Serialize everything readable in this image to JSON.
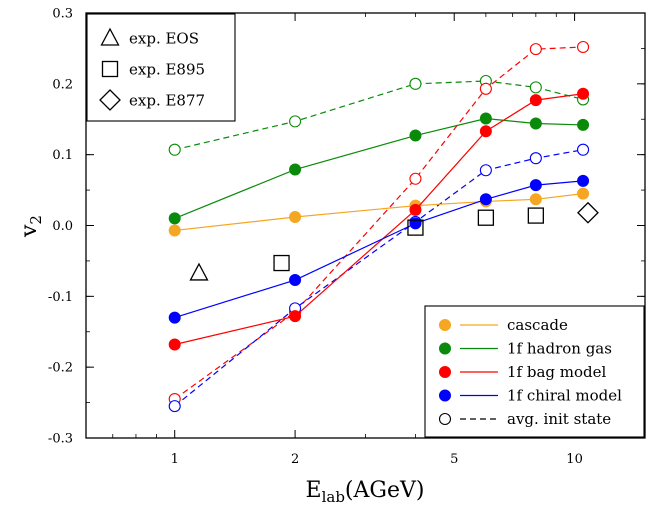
{
  "chart_data": {
    "type": "line",
    "title": "",
    "xlabel": "E",
    "xlabel_subscript": "lab",
    "xlabel_suffix": "(AGeV)",
    "ylabel": "v",
    "ylabel_subscript": "2",
    "xscale": "log",
    "xlim": [
      0.6,
      15
    ],
    "ylim": [
      -0.3,
      0.3
    ],
    "x_ticks": [
      {
        "value": 1,
        "label": "1"
      },
      {
        "value": 2,
        "label": "2"
      },
      {
        "value": 5,
        "label": "5"
      },
      {
        "value": 10,
        "label": "10"
      }
    ],
    "y_ticks": [
      {
        "value": 0.3,
        "label": "0.3"
      },
      {
        "value": 0.2,
        "label": "0.2"
      },
      {
        "value": 0.1,
        "label": "0.1"
      },
      {
        "value": 0.0,
        "label": "0.0"
      },
      {
        "value": -0.1,
        "label": "-0.1"
      },
      {
        "value": -0.2,
        "label": "-0.2"
      },
      {
        "value": -0.3,
        "label": "-0.3"
      }
    ],
    "grid": false,
    "series": [
      {
        "id": "cascade",
        "name": "cascade",
        "color": "#f5a623",
        "marker": "filled-circle",
        "line": "solid",
        "x": [
          1,
          2,
          4,
          6,
          8,
          10.5
        ],
        "y": [
          -0.007,
          0.012,
          0.028,
          0.034,
          0.037,
          0.045
        ]
      },
      {
        "id": "hadron",
        "name": "1f hadron gas",
        "color": "#0a8a0a",
        "marker": "filled-circle",
        "line": "solid",
        "x": [
          1,
          2,
          4,
          6,
          8,
          10.5
        ],
        "y": [
          0.01,
          0.079,
          0.127,
          0.151,
          0.144,
          0.142
        ]
      },
      {
        "id": "bag",
        "name": "1f bag model",
        "color": "#ff0000",
        "marker": "filled-circle",
        "line": "solid",
        "x": [
          1,
          2,
          4,
          6,
          8,
          10.5
        ],
        "y": [
          -0.168,
          -0.128,
          0.022,
          0.133,
          0.177,
          0.186
        ]
      },
      {
        "id": "chiral",
        "name": "1f chiral model",
        "color": "#0000ff",
        "marker": "filled-circle",
        "line": "solid",
        "x": [
          1,
          2,
          4,
          6,
          8,
          10.5
        ],
        "y": [
          -0.13,
          -0.077,
          0.003,
          0.037,
          0.057,
          0.063
        ]
      },
      {
        "id": "hadron-init",
        "name": "",
        "color": "#0a8a0a",
        "marker": "open-circle",
        "line": "dashed",
        "x": [
          1,
          2,
          4,
          6,
          8,
          10.5
        ],
        "y": [
          0.107,
          0.147,
          0.2,
          0.204,
          0.195,
          0.178
        ]
      },
      {
        "id": "bag-init",
        "name": "",
        "color": "#ff0000",
        "marker": "open-circle",
        "line": "dashed",
        "x": [
          1,
          2,
          4,
          6,
          8,
          10.5
        ],
        "y": [
          -0.245,
          -0.122,
          0.066,
          0.193,
          0.249,
          0.252
        ]
      },
      {
        "id": "chiral-init",
        "name": "",
        "color": "#0000ff",
        "marker": "open-circle",
        "line": "dashed",
        "x": [
          1,
          2,
          4,
          6,
          8,
          10.5
        ],
        "y": [
          -0.255,
          -0.117,
          0.005,
          0.078,
          0.095,
          0.107
        ]
      }
    ],
    "experiments": [
      {
        "id": "eos",
        "name": "exp. EOS",
        "marker": "open-triangle",
        "points": [
          {
            "x": 1.15,
            "y": -0.067
          }
        ]
      },
      {
        "id": "e895",
        "name": "exp. E895",
        "marker": "open-square",
        "points": [
          {
            "x": 1.85,
            "y": -0.053
          },
          {
            "x": 4,
            "y": -0.003
          },
          {
            "x": 6,
            "y": 0.011
          },
          {
            "x": 8,
            "y": 0.014
          }
        ]
      },
      {
        "id": "e877",
        "name": "exp. E877",
        "marker": "open-diamond",
        "points": [
          {
            "x": 10.8,
            "y": 0.018
          }
        ]
      }
    ],
    "legend_experiments": {
      "placement": "top-left",
      "entries": [
        "eos",
        "e895",
        "e877"
      ]
    },
    "legend_models": {
      "placement": "bottom-right",
      "entries": [
        {
          "label": "cascade",
          "color": "#f5a623",
          "marker": "filled-circle",
          "line": "solid"
        },
        {
          "label": "1f hadron gas",
          "color": "#0a8a0a",
          "marker": "filled-circle",
          "line": "solid"
        },
        {
          "label": "1f bag model",
          "color": "#ff0000",
          "marker": "filled-circle",
          "line": "solid"
        },
        {
          "label": "1f chiral model",
          "color": "#0000ff",
          "marker": "filled-circle",
          "line": "solid"
        },
        {
          "label": "avg. init state",
          "color": "#000000",
          "marker": "open-circle",
          "line": "dashed"
        }
      ]
    }
  }
}
